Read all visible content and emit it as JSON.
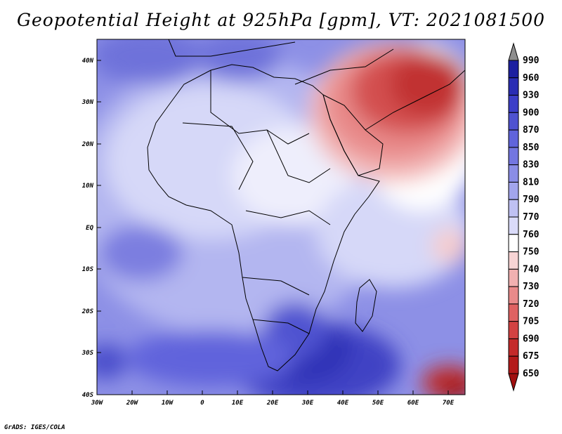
{
  "title": "Geopotential Height at 925hPa [gpm], VT: 2021081500",
  "footer": "GrADS: IGES/COLA",
  "map": {
    "lon_range": [
      -30,
      75
    ],
    "lat_range": [
      -40,
      45
    ],
    "lat_ticks": [
      "40N",
      "30N",
      "20N",
      "10N",
      "EQ",
      "10S",
      "20S",
      "30S",
      "40S"
    ],
    "lon_ticks": [
      "30W",
      "20W",
      "10W",
      "0",
      "10E",
      "20E",
      "30E",
      "40E",
      "50E",
      "60E",
      "70E"
    ]
  },
  "colorbar": {
    "levels": [
      "990",
      "960",
      "930",
      "900",
      "870",
      "850",
      "830",
      "810",
      "790",
      "770",
      "760",
      "750",
      "740",
      "730",
      "720",
      "705",
      "690",
      "675",
      "650"
    ],
    "colors": [
      "#8e8e8e",
      "#1c1fa0",
      "#2a2db4",
      "#3c3ec8",
      "#4f52d0",
      "#6064dc",
      "#7376e0",
      "#8a8de6",
      "#a2a5ec",
      "#bfc1f3",
      "#dadbf9",
      "#ffffff",
      "#f8d4d4",
      "#f1b0b0",
      "#e98a8a",
      "#df6262",
      "#d34242",
      "#c42a2a",
      "#b31a1a",
      "#a01010"
    ]
  }
}
